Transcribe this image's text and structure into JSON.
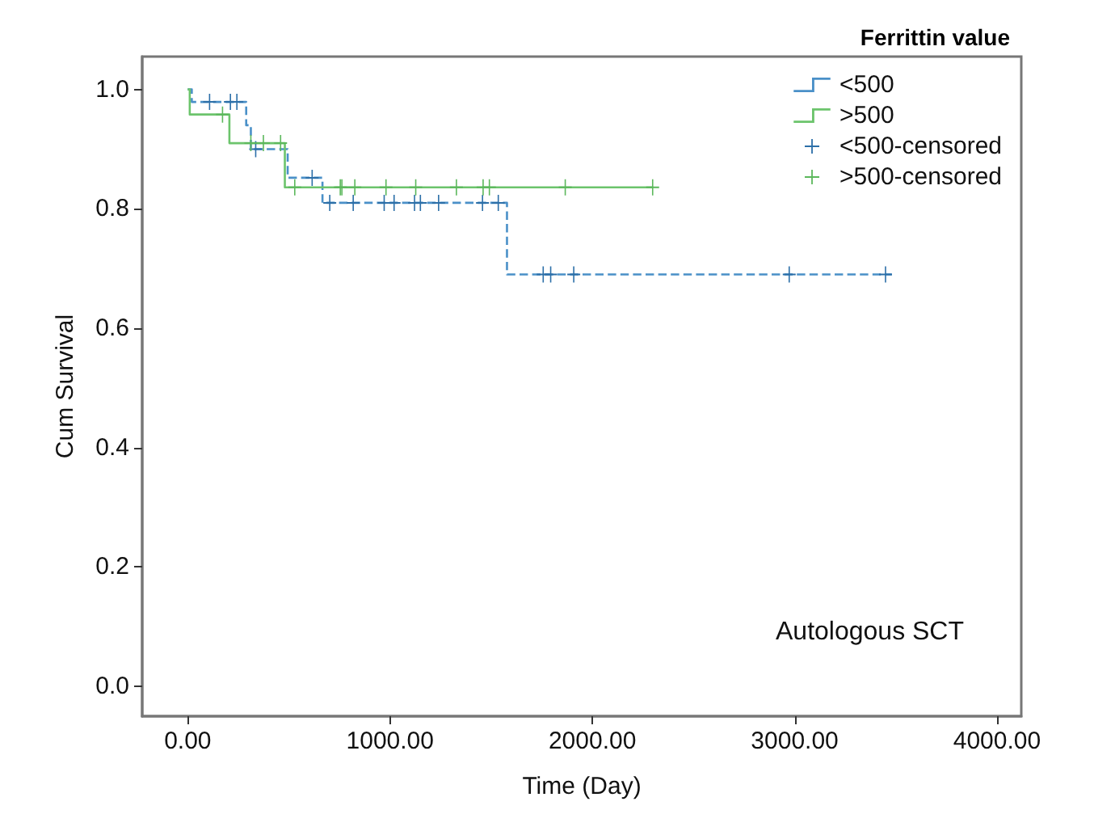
{
  "chart_data": {
    "type": "step",
    "xlabel": "Time (Day)",
    "ylabel": "Cum Survival",
    "legend_title": "Ferrittin value",
    "legend": "top right",
    "grid": false,
    "xlim": [
      -225,
      4120
    ],
    "ylim": [
      -0.05,
      1.055
    ],
    "xticks": [
      {
        "value": 0,
        "label": "0.00"
      },
      {
        "value": 1000,
        "label": "1000.00"
      },
      {
        "value": 2000,
        "label": "2000.00"
      },
      {
        "value": 3000,
        "label": "3000.00"
      },
      {
        "value": 4000,
        "label": "4000.00"
      }
    ],
    "yticks": [
      {
        "value": 0,
        "label": "0.0"
      },
      {
        "value": 0.2,
        "label": "0.2"
      },
      {
        "value": 0.4,
        "label": "0.4"
      },
      {
        "value": 0.6,
        "label": "0.6"
      },
      {
        "value": 0.8,
        "label": "0.8"
      },
      {
        "value": 1,
        "label": "1.0"
      }
    ],
    "annotations": [
      "Autologous SCT"
    ],
    "series": [
      {
        "name": "<500",
        "color": "#4a90c8",
        "line_style": "dashed",
        "x": [
          0,
          20,
          289,
          312,
          494,
          666,
          1578,
          3480
        ],
        "values": [
          1,
          0.979,
          0.94,
          0.9,
          0.852,
          0.81,
          0.69,
          0.69
        ]
      },
      {
        "name": ">500",
        "color": "#6cc46c",
        "line_style": "solid",
        "x": [
          0,
          10,
          206,
          480,
          2300
        ],
        "values": [
          1,
          0.958,
          0.91,
          0.836,
          0.836
        ]
      },
      {
        "name": "<500-censored",
        "type": "scatter",
        "color": "#2c6fa8",
        "marker": "cross",
        "x": [
          108,
          211,
          243,
          336,
          615,
          702,
          818,
          971,
          1020,
          1121,
          1150,
          1240,
          1457,
          1535,
          1757,
          1794,
          1908,
          2973,
          3449
        ],
        "values": [
          0.979,
          0.979,
          0.979,
          0.9,
          0.852,
          0.81,
          0.81,
          0.81,
          0.81,
          0.81,
          0.81,
          0.81,
          0.81,
          0.81,
          0.69,
          0.69,
          0.69,
          0.69,
          0.69
        ]
      },
      {
        "name": ">500-censored",
        "type": "scatter",
        "color": "#5cb85c",
        "marker": "cross",
        "x": [
          172,
          312,
          374,
          459,
          529,
          754,
          762,
          826,
          980,
          1127,
          1328,
          1460,
          1491,
          1866,
          2298
        ],
        "values": [
          0.958,
          0.91,
          0.91,
          0.91,
          0.836,
          0.836,
          0.836,
          0.836,
          0.836,
          0.836,
          0.836,
          0.836,
          0.836,
          0.836,
          0.836
        ]
      }
    ]
  }
}
